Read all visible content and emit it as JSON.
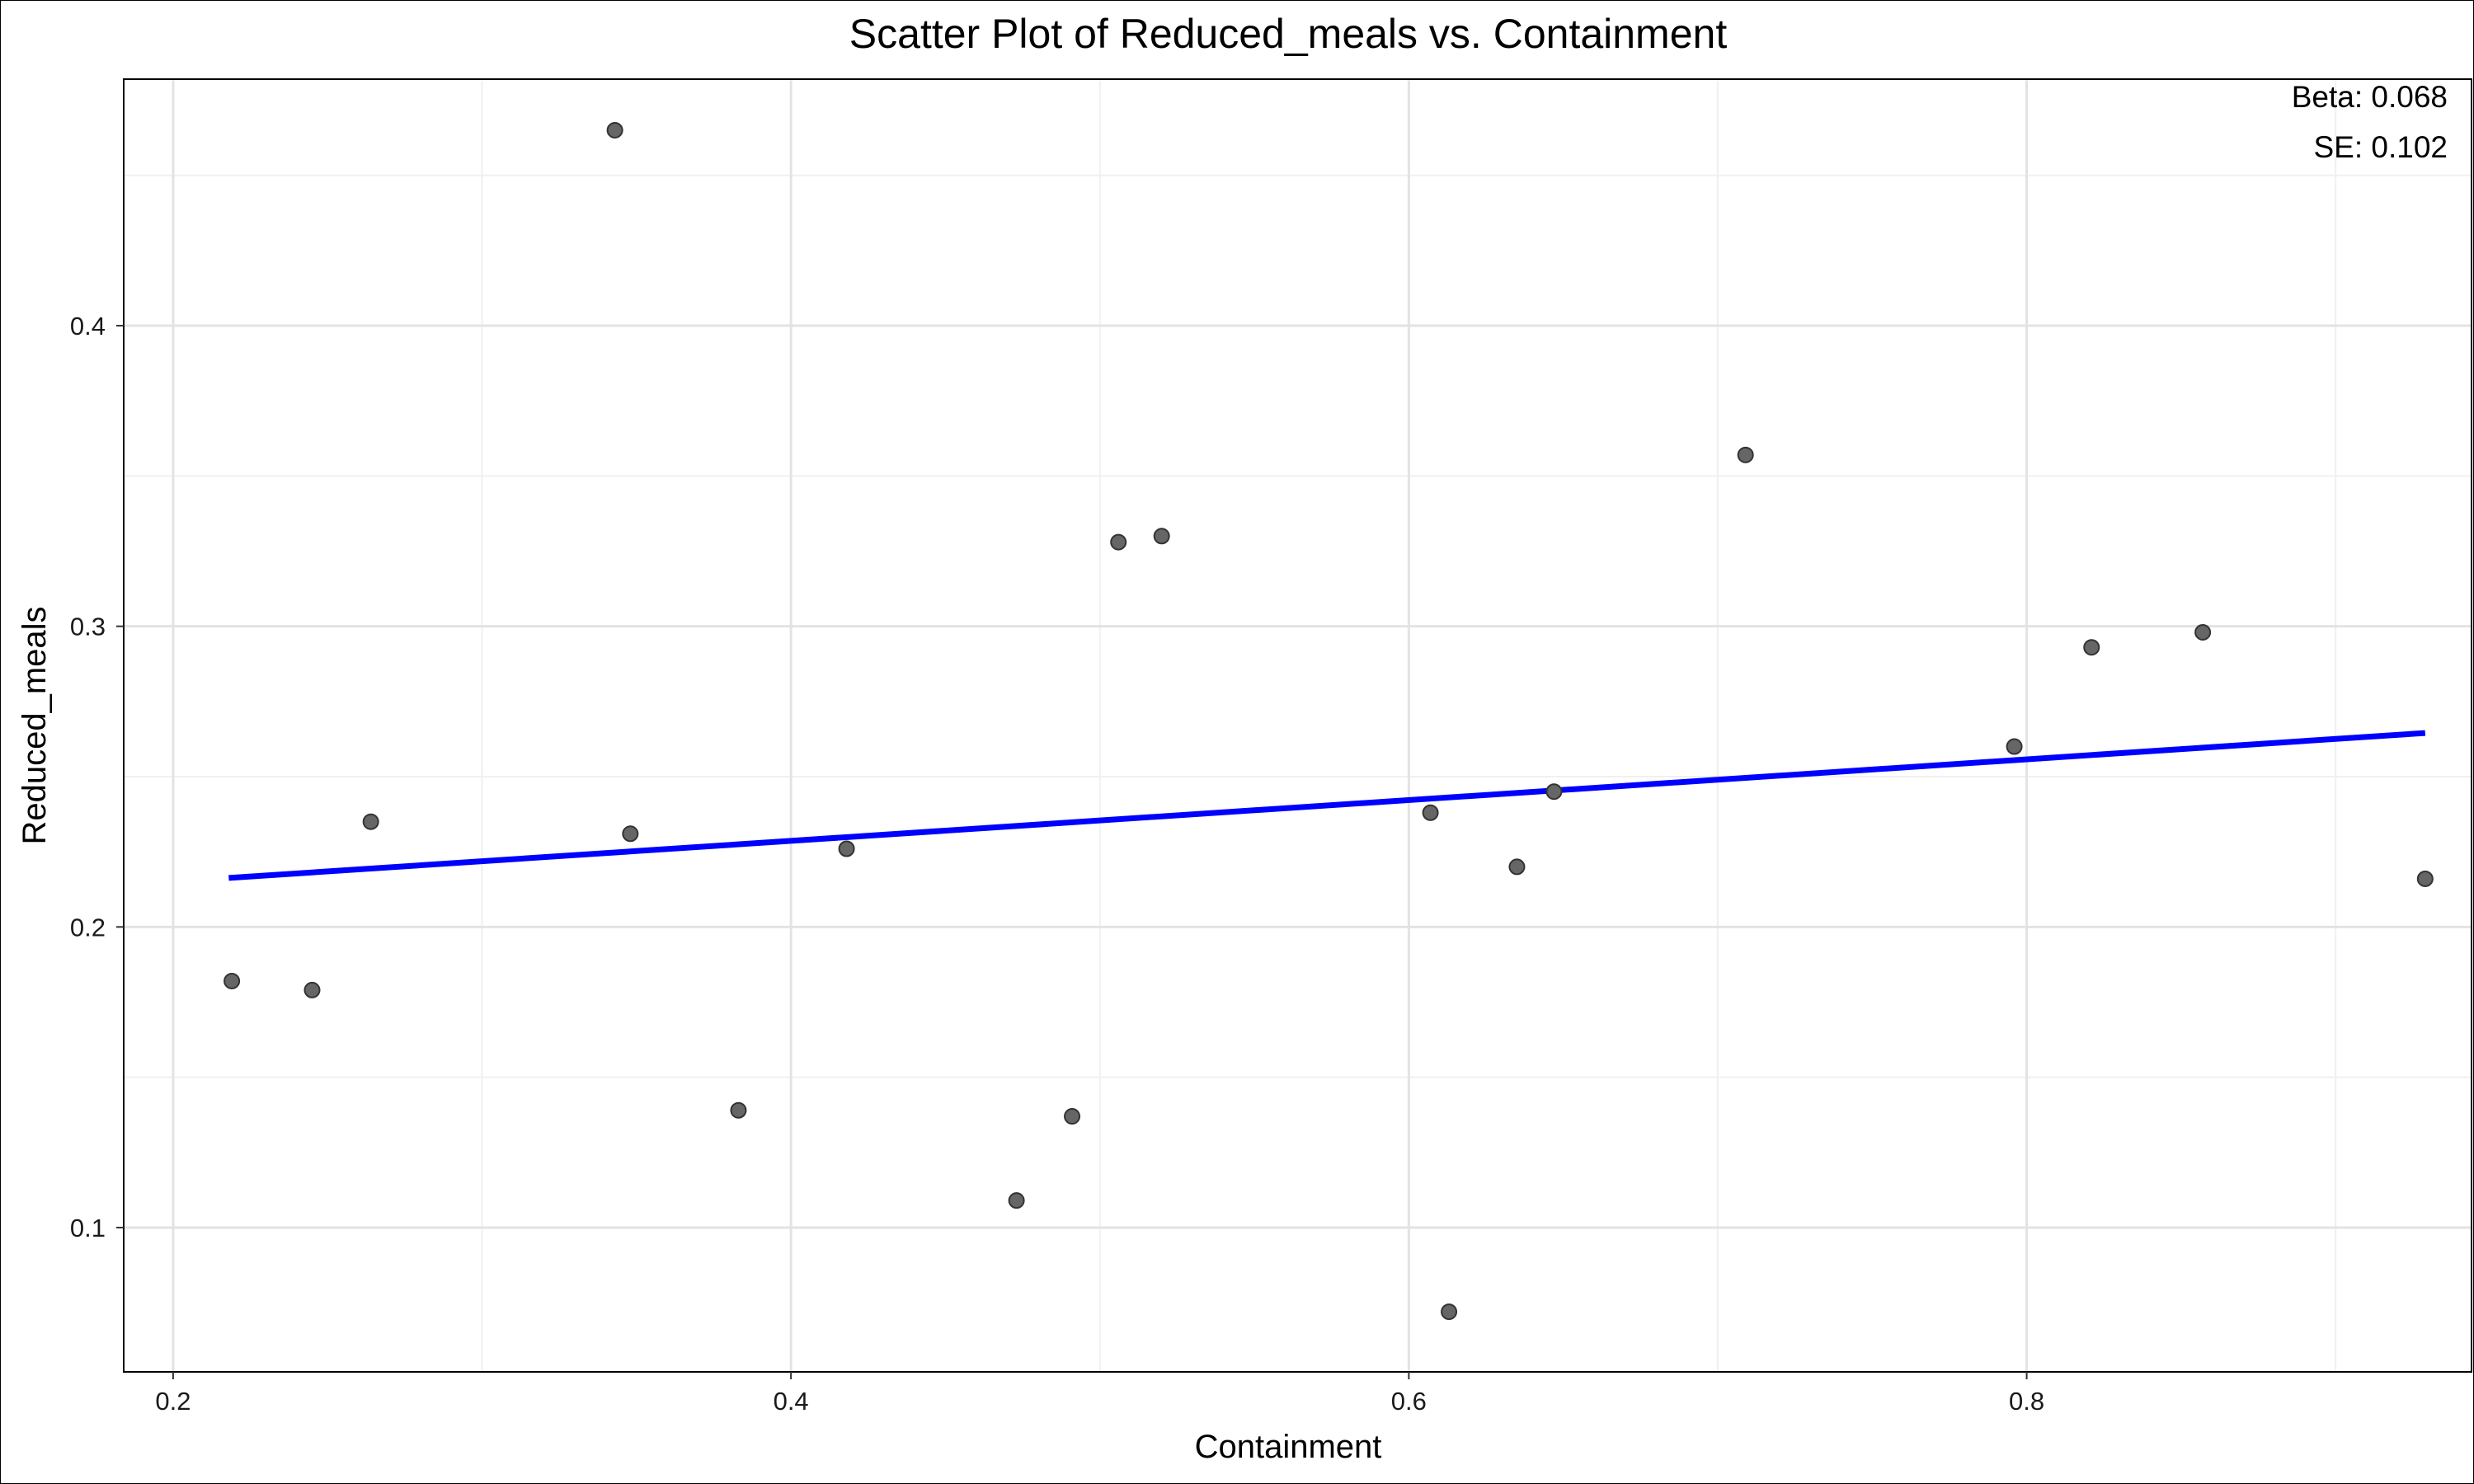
{
  "chart_data": {
    "type": "scatter",
    "title": "Scatter Plot of Reduced_meals vs. Containment",
    "xlabel": "Containment",
    "ylabel": "Reduced_meals",
    "xlim": [
      0.184,
      0.944
    ],
    "ylim": [
      0.052,
      0.482
    ],
    "x_ticks": [
      0.2,
      0.4,
      0.6,
      0.8
    ],
    "y_ticks": [
      0.1,
      0.2,
      0.3,
      0.4
    ],
    "x_tick_labels": [
      "0.2",
      "0.4",
      "0.6",
      "0.8"
    ],
    "y_tick_labels": [
      "0.1",
      "0.2",
      "0.3",
      "0.4"
    ],
    "grid": true,
    "points": [
      {
        "x": 0.219,
        "y": 0.182
      },
      {
        "x": 0.245,
        "y": 0.179
      },
      {
        "x": 0.264,
        "y": 0.235
      },
      {
        "x": 0.343,
        "y": 0.465
      },
      {
        "x": 0.348,
        "y": 0.231
      },
      {
        "x": 0.383,
        "y": 0.139
      },
      {
        "x": 0.418,
        "y": 0.226
      },
      {
        "x": 0.473,
        "y": 0.109
      },
      {
        "x": 0.491,
        "y": 0.137
      },
      {
        "x": 0.506,
        "y": 0.328
      },
      {
        "x": 0.52,
        "y": 0.33
      },
      {
        "x": 0.607,
        "y": 0.238
      },
      {
        "x": 0.613,
        "y": 0.072
      },
      {
        "x": 0.635,
        "y": 0.22
      },
      {
        "x": 0.647,
        "y": 0.245
      },
      {
        "x": 0.709,
        "y": 0.357
      },
      {
        "x": 0.796,
        "y": 0.26
      },
      {
        "x": 0.821,
        "y": 0.293
      },
      {
        "x": 0.857,
        "y": 0.298
      },
      {
        "x": 0.929,
        "y": 0.216
      }
    ],
    "fit_line": {
      "x": [
        0.218,
        0.929
      ],
      "y": [
        0.2163,
        0.2645
      ],
      "color": "#0000ff"
    },
    "point_color": "#666666",
    "annotations": {
      "beta": "Beta: 0.068",
      "se": "SE: 0.102"
    }
  }
}
